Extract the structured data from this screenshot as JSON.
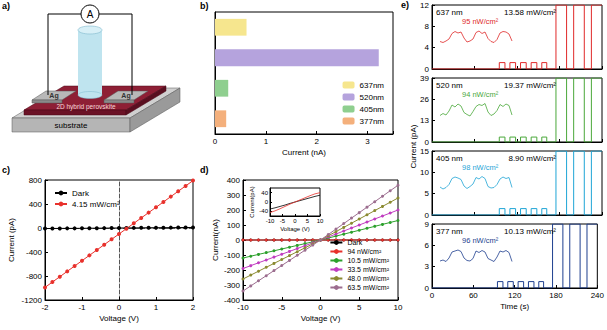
{
  "schematic": {
    "panel": "a)",
    "meter": "A",
    "electrodes": [
      "Ag",
      "Ag"
    ],
    "layer": "2D hybrid perovskite",
    "substrate": "substrate"
  },
  "chart_data": [
    {
      "panel": "b)",
      "type": "bar",
      "orientation": "horizontal",
      "categories": [
        "637nm",
        "520nm",
        "405nm",
        "377nm"
      ],
      "values": [
        0.62,
        3.22,
        0.26,
        0.22
      ],
      "colors": [
        "#f6e68e",
        "#b5a3dd",
        "#8fcf8f",
        "#f4b07c"
      ],
      "xlabel": "Current (nA)",
      "xlim": [
        0,
        3.5
      ],
      "xticks": [
        0,
        1,
        2,
        3
      ],
      "tick_labels": "x",
      "legend": "lower right"
    },
    {
      "panel": "c)",
      "type": "line",
      "marker": "circle",
      "xlabel": "Voltage (V)",
      "ylabel": "Current (pA)",
      "x": [
        -2,
        -1.8,
        -1.6,
        -1.4,
        -1.2,
        -1,
        -0.8,
        -0.6,
        -0.4,
        -0.2,
        0,
        0.2,
        0.4,
        0.6,
        0.8,
        1,
        1.2,
        1.4,
        1.6,
        1.8,
        2
      ],
      "xlim": [
        -2,
        2
      ],
      "xticks": [
        -2,
        -1,
        0,
        1,
        2
      ],
      "ylim": [
        -1200,
        800
      ],
      "yticks": [
        -1200,
        -800,
        -400,
        0,
        400,
        800
      ],
      "legend": "upper left",
      "series": [
        {
          "name": "Dark",
          "color": "#000000",
          "values": [
            -9,
            -8,
            -7,
            -6,
            -6,
            -5,
            -4,
            -3,
            -2,
            -1,
            0,
            1,
            2,
            3,
            4,
            5,
            5,
            6,
            7,
            8,
            9
          ]
        },
        {
          "name": "4.15 mW/cm²",
          "color": "#e8312c",
          "values": [
            -990,
            -901,
            -812,
            -723,
            -634,
            -545,
            -456,
            -367,
            -278,
            -189,
            -100,
            -11,
            78,
            167,
            256,
            345,
            434,
            523,
            612,
            701,
            790
          ]
        }
      ]
    },
    {
      "panel": "d)",
      "type": "line",
      "marker": "circle",
      "xlabel": "Voltage (V)",
      "ylabel": "Current(nA)",
      "x": [
        -10,
        -9,
        -8,
        -7,
        -6,
        -5,
        -4,
        -3,
        -2,
        -1,
        0,
        1,
        2,
        3,
        4,
        5,
        6,
        7,
        8,
        9,
        10
      ],
      "xlim": [
        -10,
        10
      ],
      "xticks": [
        -10,
        -5,
        0,
        5,
        10
      ],
      "ylim": [
        -400,
        400
      ],
      "yticks": [
        -400,
        -300,
        -200,
        -100,
        0,
        100,
        200,
        300,
        400
      ],
      "legend": "lower right",
      "series": [
        {
          "name": "Dark",
          "color": "#000000",
          "values": [
            -0.03,
            -0.03,
            -0.03,
            -0.02,
            -0.02,
            -0.02,
            -0.01,
            -0.01,
            -0.01,
            0,
            0,
            0,
            0.01,
            0.01,
            0.01,
            0.02,
            0.02,
            0.02,
            0.03,
            0.03,
            0.03
          ]
        },
        {
          "name": "94 nW/cm²",
          "color": "#e8312c",
          "values": [
            -0.045,
            -0.04,
            -0.036,
            -0.032,
            -0.027,
            -0.023,
            -0.018,
            -0.014,
            -0.009,
            -0.005,
            0,
            0.004,
            0.008,
            0.012,
            0.016,
            0.02,
            0.024,
            0.028,
            0.032,
            0.036,
            0.04
          ]
        },
        {
          "name": "10.5 mW/cm²",
          "color": "#2ca02c",
          "values": [
            -120,
            -108,
            -96,
            -84,
            -72,
            -60,
            -48,
            -36,
            -24,
            -12,
            0,
            13,
            26,
            39,
            52,
            65,
            78,
            91,
            104,
            117,
            130
          ]
        },
        {
          "name": "33.5 mW/cm²",
          "color": "#c03cc0",
          "values": [
            -190,
            -171,
            -152,
            -133,
            -114,
            -95,
            -76,
            -57,
            -38,
            -19,
            0,
            20,
            40,
            60,
            80,
            100,
            120,
            140,
            160,
            180,
            200
          ]
        },
        {
          "name": "48.0 mW/cm²",
          "color": "#8a8a30",
          "values": [
            -260,
            -234,
            -208,
            -182,
            -156,
            -130,
            -104,
            -78,
            -52,
            -26,
            0,
            28,
            56,
            84,
            112,
            140,
            168,
            196,
            224,
            252,
            280
          ]
        },
        {
          "name": "63.5 mW/cm²",
          "color": "#9c6d8f",
          "values": [
            -340,
            -306,
            -272,
            -238,
            -204,
            -170,
            -136,
            -102,
            -68,
            -34,
            0,
            36.5,
            73,
            109.5,
            146,
            182.5,
            219,
            255.5,
            292,
            328.5,
            365
          ]
        }
      ],
      "inset": {
        "xlabel": "Voltage (V)",
        "ylabel": "Current(pA)",
        "x": [
          -10,
          -8,
          -6,
          -4,
          -2,
          0,
          2,
          4,
          6,
          8,
          10
        ],
        "xlim": [
          -10,
          10
        ],
        "xticks": [
          -10,
          -5,
          0,
          5,
          10
        ],
        "ylim": [
          -60,
          60
        ],
        "yticks": [
          -40,
          0,
          40
        ],
        "series": [
          {
            "color": "#000000",
            "values": [
              -30,
              -25,
              -19,
              -13,
              -6,
              0,
              6,
              12,
              18,
              24,
              29
            ]
          },
          {
            "color": "#e8312c",
            "values": [
              -45,
              -38,
              -29,
              -19,
              -9,
              0,
              9,
              18,
              27,
              35,
              40
            ]
          }
        ]
      }
    },
    {
      "panel": "e)",
      "type": "line",
      "title": "637 nm",
      "annotation": "13.58 mW/cm²",
      "color": "#e02a2a",
      "x": [
        0,
        95,
        95,
        103,
        103,
        110,
        110,
        118,
        118,
        125,
        125,
        133,
        133,
        140,
        140,
        148,
        148,
        155,
        155,
        162,
        162,
        175,
        175,
        190,
        190,
        200,
        200,
        215,
        215,
        225,
        225,
        240
      ],
      "values": [
        0,
        0,
        1.2,
        1.2,
        0,
        0,
        1.2,
        1.2,
        0,
        0,
        1.2,
        1.2,
        0,
        0,
        1.2,
        1.2,
        0,
        0,
        1.2,
        1.2,
        0,
        0,
        12,
        12,
        0,
        0,
        12,
        12,
        0,
        0,
        12,
        12
      ],
      "xlim": [
        0,
        240
      ],
      "xticks": [
        0,
        60,
        120,
        180,
        240
      ],
      "ylim": [
        0,
        12
      ],
      "yticks": [
        0,
        4,
        8,
        12
      ],
      "tick_labels": "y",
      "inset": {
        "label": "95 nW/cm²",
        "x": [
          0,
          2,
          4,
          6,
          8,
          10,
          12,
          14,
          16,
          18,
          20,
          22,
          24,
          26,
          28,
          30,
          32,
          34,
          36,
          38,
          40,
          42,
          44,
          46,
          48
        ],
        "values": [
          1.1,
          0.9,
          1.2,
          1.6,
          2.7,
          3.1,
          2.8,
          3.0,
          1.8,
          1.0,
          1.2,
          1.6,
          2.9,
          3.2,
          2.7,
          3.0,
          1.7,
          1.1,
          0.9,
          1.5,
          2.8,
          3.1,
          3.0,
          2.6,
          1.2
        ],
        "xlim": [
          0,
          48
        ],
        "ylim": [
          0,
          4
        ],
        "tick_labels": false
      }
    },
    {
      "type": "line",
      "title": "520 nm",
      "annotation": "19.37 mW/cm²",
      "color": "#4aa83a",
      "x": [
        0,
        95,
        95,
        103,
        103,
        110,
        110,
        118,
        118,
        125,
        125,
        133,
        133,
        140,
        140,
        148,
        148,
        155,
        155,
        162,
        162,
        175,
        175,
        190,
        190,
        200,
        200,
        215,
        215,
        225,
        225,
        240
      ],
      "values": [
        0,
        0,
        3,
        3,
        0,
        0,
        3,
        3,
        0,
        0,
        3,
        3,
        0,
        0,
        3,
        3,
        0,
        0,
        3,
        3,
        0,
        0,
        39,
        39,
        0,
        0,
        39,
        39,
        0,
        0,
        39,
        39
      ],
      "xlim": [
        0,
        240
      ],
      "xticks": [
        0,
        60,
        120,
        180,
        240
      ],
      "ylim": [
        0,
        39
      ],
      "yticks": [
        0,
        13,
        26,
        39
      ],
      "tick_labels": "y",
      "inset": {
        "label": "94 nW/cm²",
        "x": [
          0,
          2,
          4,
          6,
          8,
          10,
          12,
          14,
          16,
          18,
          20,
          22,
          24,
          26,
          28,
          30,
          32,
          34,
          36,
          38,
          40,
          42,
          44,
          46,
          48
        ],
        "values": [
          0.9,
          1.3,
          1.0,
          1.8,
          3.0,
          2.6,
          3.2,
          2.8,
          1.5,
          1.1,
          0.8,
          1.7,
          2.7,
          3.1,
          2.9,
          3.3,
          1.6,
          0.9,
          1.2,
          1.9,
          3.1,
          2.7,
          3.2,
          2.9,
          1.0
        ],
        "xlim": [
          0,
          48
        ],
        "ylim": [
          0,
          4
        ],
        "tick_labels": false
      }
    },
    {
      "type": "line",
      "title": "405 nm",
      "annotation": "8.90 mW/cm²",
      "color": "#1fa5d6",
      "x": [
        0,
        95,
        95,
        103,
        103,
        110,
        110,
        118,
        118,
        125,
        125,
        133,
        133,
        140,
        140,
        148,
        148,
        155,
        155,
        162,
        162,
        175,
        175,
        190,
        190,
        200,
        200,
        215,
        215,
        225,
        225,
        240
      ],
      "values": [
        0,
        0,
        1.5,
        1.5,
        0,
        0,
        1.5,
        1.5,
        0,
        0,
        1.5,
        1.5,
        0,
        0,
        1.5,
        1.5,
        0,
        0,
        1.5,
        1.5,
        0,
        0,
        15,
        15,
        0,
        0,
        15,
        15,
        0,
        0,
        15,
        15
      ],
      "xlim": [
        0,
        240
      ],
      "xticks": [
        0,
        60,
        120,
        180,
        240
      ],
      "ylim": [
        0,
        15
      ],
      "yticks": [
        0,
        5,
        10,
        15
      ],
      "tick_labels": "y",
      "inset": {
        "label": "98 nW/cm²",
        "x": [
          0,
          2,
          4,
          6,
          8,
          10,
          12,
          14,
          16,
          18,
          20,
          22,
          24,
          26,
          28,
          30,
          32,
          34,
          36,
          38,
          40,
          42,
          44,
          46,
          48
        ],
        "values": [
          1.2,
          0.8,
          1.1,
          1.7,
          2.9,
          3.2,
          3.0,
          2.7,
          1.4,
          0.9,
          1.3,
          1.8,
          3.1,
          2.8,
          3.3,
          2.9,
          1.3,
          1.0,
          1.1,
          1.7,
          2.8,
          3.2,
          2.9,
          3.1,
          1.1
        ],
        "xlim": [
          0,
          48
        ],
        "ylim": [
          0,
          4
        ],
        "tick_labels": false
      }
    },
    {
      "type": "line",
      "title": "377 nm",
      "annotation": "10.13 mW/cm²",
      "color": "#1e3f8f",
      "xlabel": "Time (s)",
      "ylabel": "Current (pA)",
      "x": [
        0,
        95,
        95,
        103,
        103,
        110,
        110,
        118,
        118,
        125,
        125,
        133,
        133,
        140,
        140,
        148,
        148,
        155,
        155,
        162,
        162,
        175,
        175,
        190,
        190,
        200,
        200,
        215,
        215,
        225,
        225,
        240
      ],
      "values": [
        0,
        0,
        0.9,
        0.9,
        0,
        0,
        0.9,
        0.9,
        0,
        0,
        0.9,
        0.9,
        0,
        0,
        0.9,
        0.9,
        0,
        0,
        0.9,
        0.9,
        0,
        0,
        9,
        9,
        0,
        0,
        9,
        9,
        0,
        0,
        9,
        9
      ],
      "xlim": [
        0,
        240
      ],
      "xticks": [
        0,
        60,
        120,
        180,
        240
      ],
      "ylim": [
        0,
        9
      ],
      "yticks": [
        0,
        3,
        6,
        9
      ],
      "inset": {
        "label": "96 nW/cm²",
        "x": [
          0,
          2,
          4,
          6,
          8,
          10,
          12,
          14,
          16,
          18,
          20,
          22,
          24,
          26,
          28,
          30,
          32,
          34,
          36,
          38,
          40,
          42,
          44,
          46,
          48
        ],
        "values": [
          1.0,
          1.2,
          0.9,
          1.6,
          2.8,
          3.0,
          3.2,
          2.9,
          1.6,
          1.1,
          1.0,
          1.5,
          3.0,
          2.7,
          3.1,
          2.8,
          1.5,
          1.2,
          0.9,
          1.8,
          3.0,
          2.8,
          3.1,
          2.7,
          0.9
        ],
        "xlim": [
          0,
          48
        ],
        "ylim": [
          0,
          4
        ],
        "tick_labels": false
      }
    }
  ]
}
